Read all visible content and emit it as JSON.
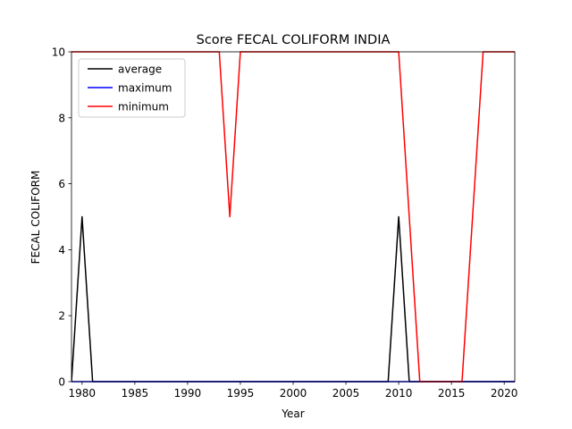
{
  "chart_data": {
    "type": "line",
    "title": "Score FECAL COLIFORM INDIA",
    "xlabel": "Year",
    "ylabel": "FECAL COLIFORM",
    "xlim": [
      1979,
      2021
    ],
    "ylim": [
      0,
      10
    ],
    "xticks": [
      1980,
      1985,
      1990,
      1995,
      2000,
      2005,
      2010,
      2015,
      2020
    ],
    "yticks": [
      0,
      2,
      4,
      6,
      8,
      10
    ],
    "grid": false,
    "legend_position": "upper-left",
    "x": [
      1979,
      1980,
      1981,
      1982,
      1983,
      1984,
      1985,
      1986,
      1987,
      1988,
      1989,
      1990,
      1991,
      1992,
      1993,
      1994,
      1995,
      1996,
      1997,
      1998,
      1999,
      2000,
      2001,
      2002,
      2003,
      2004,
      2005,
      2006,
      2007,
      2008,
      2009,
      2010,
      2011,
      2012,
      2013,
      2014,
      2015,
      2016,
      2017,
      2018,
      2019,
      2020,
      2021
    ],
    "series": [
      {
        "name": "average",
        "color": "#000000",
        "values": [
          0,
          5,
          0,
          0,
          0,
          0,
          0,
          0,
          0,
          0,
          0,
          0,
          0,
          0,
          0,
          0,
          0,
          0,
          0,
          0,
          0,
          0,
          0,
          0,
          0,
          0,
          0,
          0,
          0,
          0,
          0,
          5,
          0,
          0,
          0,
          0,
          0,
          0,
          0,
          0,
          0,
          0,
          0
        ]
      },
      {
        "name": "maximum",
        "color": "#0000ff",
        "values": [
          0,
          0,
          0,
          0,
          0,
          0,
          0,
          0,
          0,
          0,
          0,
          0,
          0,
          0,
          0,
          0,
          0,
          0,
          0,
          0,
          0,
          0,
          0,
          0,
          0,
          0,
          0,
          0,
          0,
          0,
          0,
          0,
          0,
          0,
          0,
          0,
          0,
          0,
          0,
          0,
          0,
          0,
          0
        ]
      },
      {
        "name": "minimum",
        "color": "#ff0000",
        "values": [
          10,
          10,
          10,
          10,
          10,
          10,
          10,
          10,
          10,
          10,
          10,
          10,
          10,
          10,
          10,
          5,
          10,
          10,
          10,
          10,
          10,
          10,
          10,
          10,
          10,
          10,
          10,
          10,
          10,
          10,
          10,
          10,
          5,
          0,
          0,
          0,
          0,
          0,
          5,
          10,
          10,
          10,
          10
        ]
      }
    ]
  }
}
